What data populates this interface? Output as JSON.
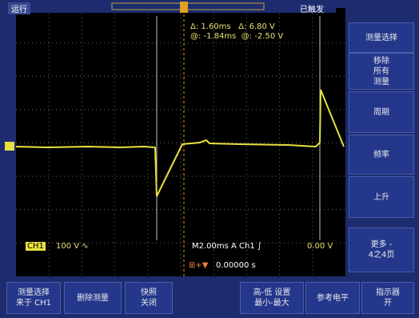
{
  "status": {
    "run_state": "运行",
    "trigger_state": "已触发"
  },
  "cursor_readout": {
    "row1": [
      "Δ:",
      "1.60ms",
      "Δ:",
      "6.80 V"
    ],
    "row2": [
      "@:",
      "-1.84ms",
      "@:",
      "-2.50 V"
    ]
  },
  "side_menu": [
    {
      "lines": [
        "测量选择"
      ]
    },
    {
      "lines": [
        "移除",
        "所有",
        "测量"
      ]
    },
    {
      "lines": [
        "周期"
      ]
    },
    {
      "lines": [
        "频率"
      ]
    },
    {
      "lines": [
        "上升"
      ]
    },
    {
      "lines": [
        "更多 -",
        "4之4页"
      ]
    }
  ],
  "channel_info": {
    "channel": "CH1",
    "scale": "100 V ∿"
  },
  "timebase": {
    "text": "M2.00ms A Ch1 ∫",
    "level": "0.00 V"
  },
  "position": {
    "marker": "⊞+▼",
    "value": "0.00000 s"
  },
  "bottom_menu": [
    {
      "lines": [
        "测量选择",
        "来于 CH1"
      ]
    },
    {
      "lines": [
        "删除测量"
      ]
    },
    {
      "lines": [
        "快照",
        "关闭"
      ]
    },
    {
      "lines": [
        "高-低 设置",
        "最小-最大"
      ]
    },
    {
      "lines": [
        "参考电平"
      ]
    },
    {
      "lines": [
        "指示器",
        "开"
      ]
    }
  ]
}
